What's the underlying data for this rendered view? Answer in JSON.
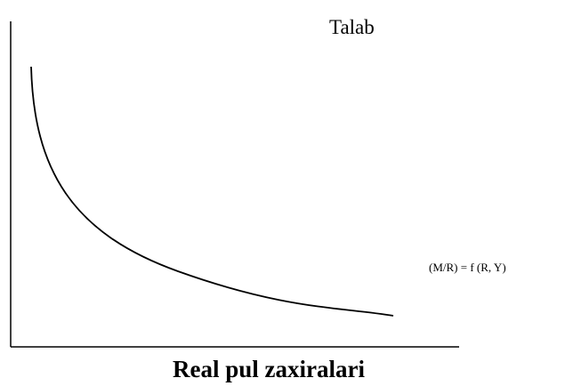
{
  "curve_label": "Talab",
  "formula": "(M/R) = f (R, Y)",
  "x_axis_label": "Real pul zaxiralari"
}
